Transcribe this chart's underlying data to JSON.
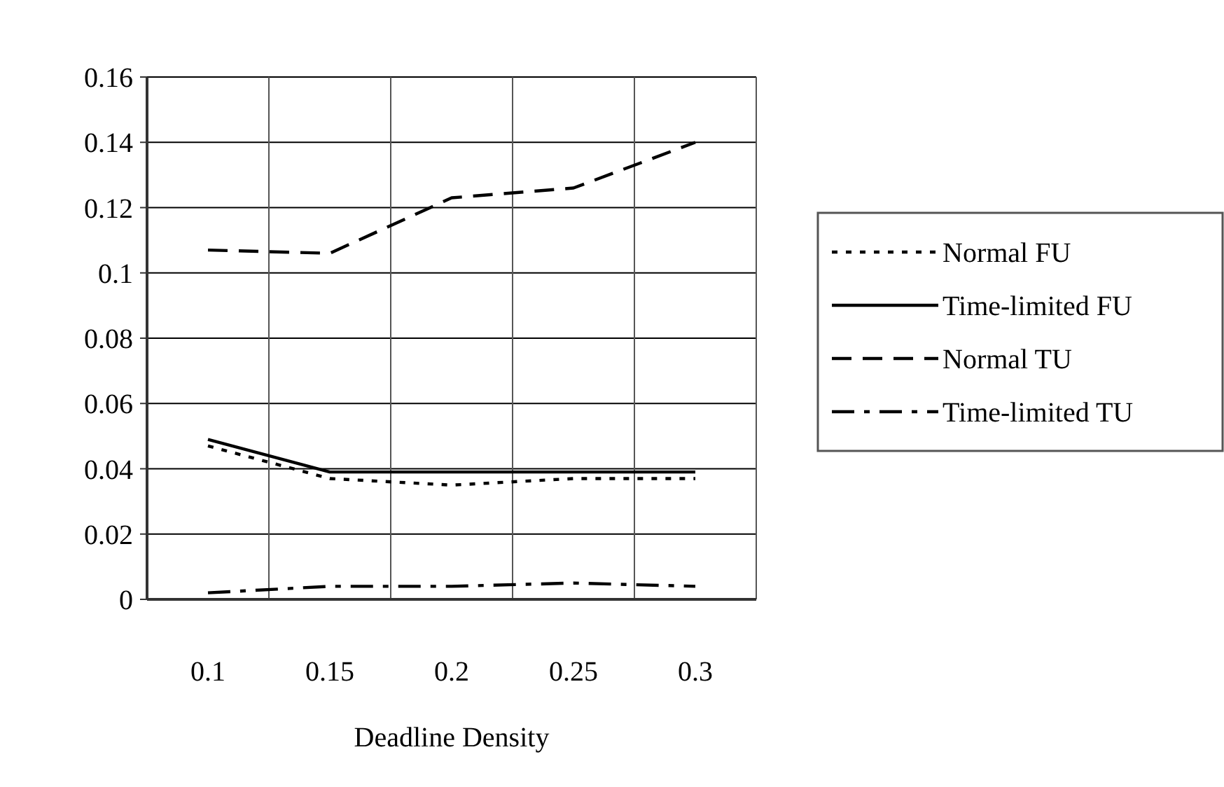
{
  "chart_data": {
    "type": "line",
    "xlabel": "Deadline Density",
    "categories": [
      "0.1",
      "0.15",
      "0.2",
      "0.25",
      "0.3"
    ],
    "series": [
      {
        "name": "Normal FU",
        "color": "#000000",
        "line_style": "dotted",
        "values": [
          0.047,
          0.037,
          0.035,
          0.037,
          0.037
        ]
      },
      {
        "name": "Time-limited FU",
        "color": "#000000",
        "line_style": "solid",
        "values": [
          0.049,
          0.039,
          0.039,
          0.039,
          0.039
        ]
      },
      {
        "name": "Normal TU",
        "color": "#000000",
        "line_style": "dashed",
        "values": [
          0.107,
          0.106,
          0.123,
          0.126,
          0.14
        ]
      },
      {
        "name": "Time-limited TU",
        "color": "#000000",
        "line_style": "dashdot",
        "values": [
          0.002,
          0.004,
          0.004,
          0.005,
          0.004
        ]
      }
    ],
    "ylim": [
      0,
      0.16
    ],
    "yticks": [
      0,
      0.02,
      0.04,
      0.06,
      0.08,
      0.1,
      0.12,
      0.14,
      0.16
    ],
    "grid": true,
    "legend": "right"
  }
}
